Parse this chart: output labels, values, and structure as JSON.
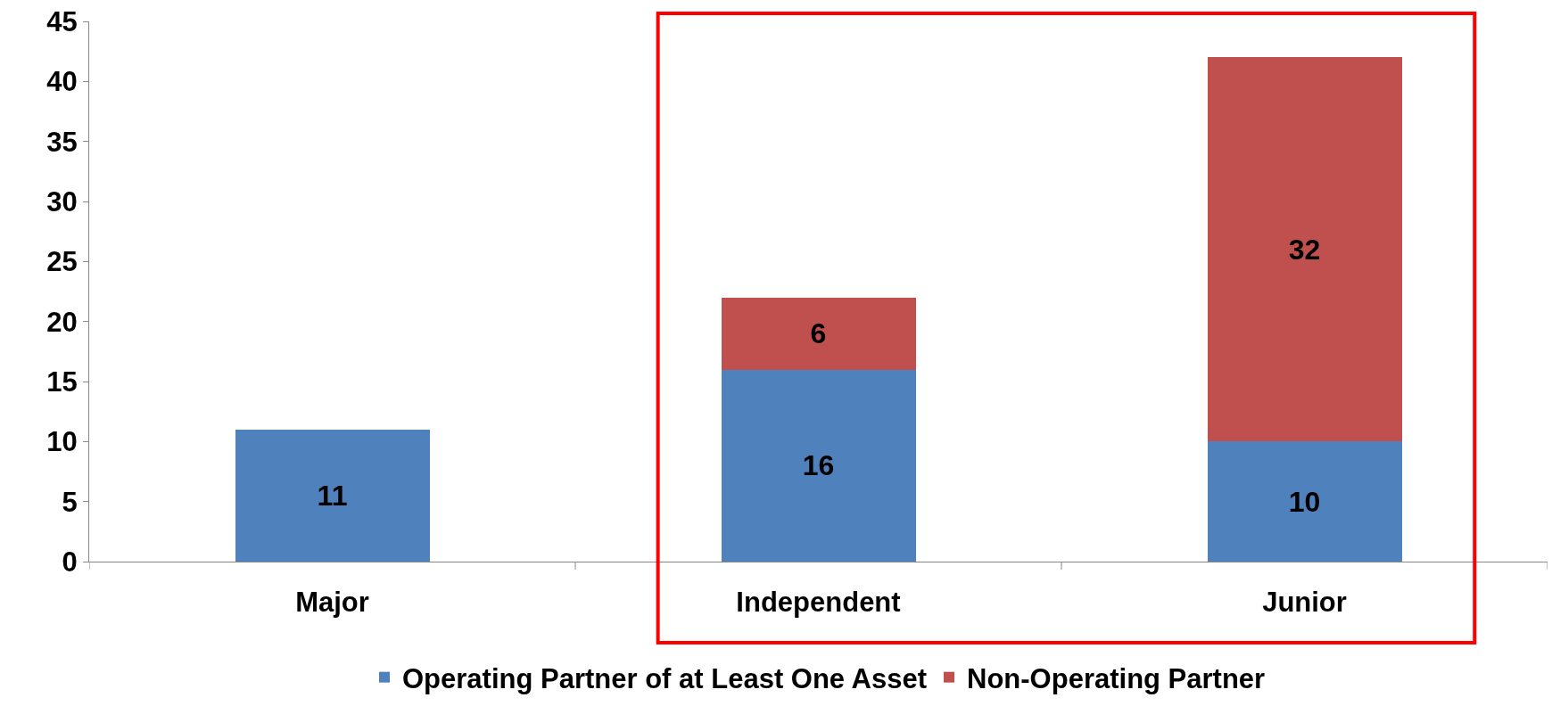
{
  "chart_data": {
    "type": "bar",
    "stacked": true,
    "categories": [
      "Major",
      "Independent",
      "Junior"
    ],
    "series": [
      {
        "name": "Operating Partner of at Least One Asset",
        "color": "#4f81bd",
        "values": [
          11,
          16,
          10
        ]
      },
      {
        "name": "Non-Operating Partner",
        "color": "#c0504d",
        "values": [
          null,
          6,
          32
        ]
      }
    ],
    "ylim": [
      0,
      45
    ],
    "yticks": [
      0,
      5,
      10,
      15,
      20,
      25,
      30,
      35,
      40,
      45
    ],
    "legend": "bottom",
    "data_labels": true
  }
}
